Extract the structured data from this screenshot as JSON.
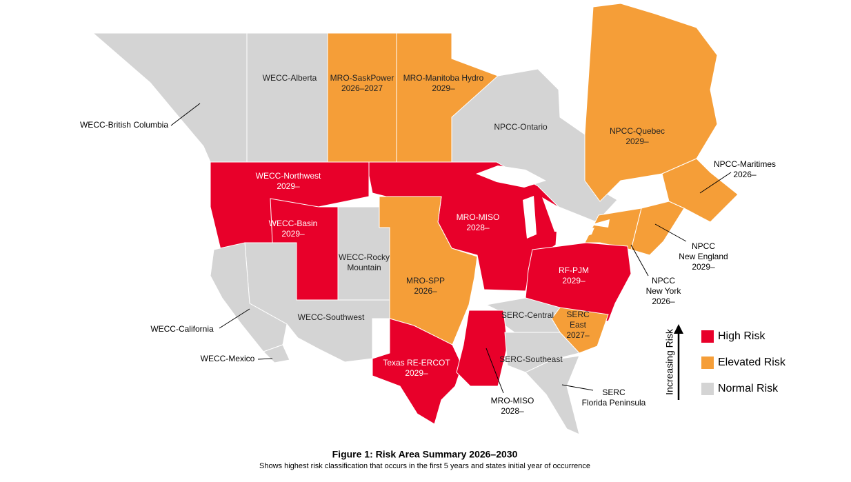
{
  "regions": [
    {
      "lines": [
        "WECC-British Columbia"
      ],
      "color": "#d4d4d4"
    },
    {
      "lines": [
        "WECC-Alberta"
      ],
      "color": "#d4d4d4"
    },
    {
      "lines": [
        "MRO-SaskPower",
        "2026–2027"
      ],
      "color": "#f59e38"
    },
    {
      "lines": [
        "MRO-Manitoba Hydro",
        "2029–"
      ],
      "color": "#f59e38"
    },
    {
      "lines": [
        "NPCC-Ontario"
      ],
      "color": "#d4d4d4"
    },
    {
      "lines": [
        "NPCC-Quebec",
        "2029–"
      ],
      "color": "#f59e38"
    },
    {
      "lines": [
        "NPCC-Maritimes",
        "2026–"
      ],
      "color": "#f59e38"
    },
    {
      "lines": [
        "NPCC",
        "New England",
        "2029–"
      ],
      "color": "#f59e38"
    },
    {
      "lines": [
        "NPCC",
        "New York",
        "2026–"
      ],
      "color": "#f59e38"
    },
    {
      "lines": [
        "WECC-Northwest",
        "2029–"
      ],
      "color": "#e8002a"
    },
    {
      "lines": [
        "WECC-Basin",
        "2029–"
      ],
      "color": "#e8002a"
    },
    {
      "lines": [
        "WECC-Rocky",
        "Mountain"
      ],
      "color": "#d4d4d4"
    },
    {
      "lines": [
        "MRO-MISO",
        "2028–"
      ],
      "color": "#e8002a"
    },
    {
      "lines": [
        "MRO-SPP",
        "2026–"
      ],
      "color": "#f59e38"
    },
    {
      "lines": [
        "RF-PJM",
        "2029–"
      ],
      "color": "#e8002a"
    },
    {
      "lines": [
        "SERC",
        "East",
        "2027–"
      ],
      "color": "#f59e38"
    },
    {
      "lines": [
        "SERC-Central"
      ],
      "color": "#d4d4d4"
    },
    {
      "lines": [
        "WECC-Southwest"
      ],
      "color": "#d4d4d4"
    },
    {
      "lines": [
        "WECC-California"
      ],
      "color": "#d4d4d4"
    },
    {
      "lines": [
        "WECC-Mexico"
      ],
      "color": "#d4d4d4"
    },
    {
      "lines": [
        "Texas RE-ERCOT",
        "2029–"
      ],
      "color": "#e8002a"
    },
    {
      "lines": [
        "MRO-MISO",
        "2028–"
      ],
      "color": "#e8002a"
    },
    {
      "lines": [
        "SERC-Southeast"
      ],
      "color": "#d4d4d4"
    },
    {
      "lines": [
        "SERC",
        "Florida Peninsula"
      ],
      "color": "#d4d4d4"
    }
  ],
  "legend": {
    "axis_label": "Increasing Risk",
    "items": [
      {
        "label": "High Risk",
        "color": "#e8002a"
      },
      {
        "label": "Elevated Risk",
        "color": "#f59e38"
      },
      {
        "label": "Normal Risk",
        "color": "#d4d4d4"
      }
    ]
  },
  "caption": {
    "title": "Figure 1: Risk Area Summary 2026–2030",
    "subtitle": "Shows highest risk classification that occurs in the first 5 years and states initial year of occurrence"
  }
}
